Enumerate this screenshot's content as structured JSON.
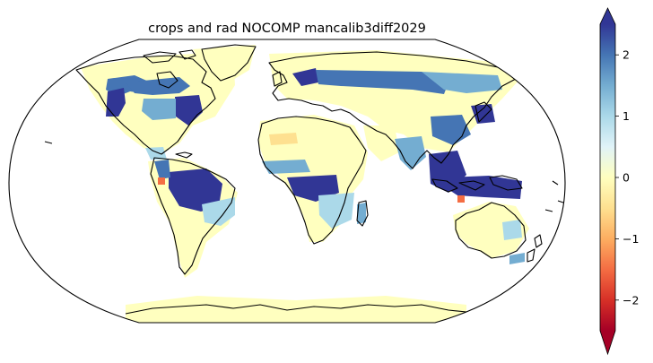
{
  "title": "crops and rad NOCOMP mancalib3diff2029",
  "colorbar": {
    "colormap": "RdYlBu",
    "range": [
      -2.5,
      2.5
    ],
    "extend": "both",
    "ticks": [
      {
        "value": 2,
        "label": "2"
      },
      {
        "value": 1,
        "label": "1"
      },
      {
        "value": 0,
        "label": "0"
      },
      {
        "value": -1,
        "label": "−1"
      },
      {
        "value": -2,
        "label": "−2"
      }
    ],
    "stops": [
      "#a50026",
      "#d73027",
      "#f46d43",
      "#fdae61",
      "#fee090",
      "#ffffbf",
      "#e0f3f8",
      "#abd9e9",
      "#74add1",
      "#4575b4",
      "#313695"
    ]
  },
  "map": {
    "projection": "Robinson",
    "coastlines": true,
    "colors": {
      "strong_positive": "#313695",
      "positive": "#4575b4",
      "moderate_positive": "#74add1",
      "light_positive": "#abd9e9",
      "faint_positive": "#e0f3f8",
      "near_zero": "#ffffbf",
      "slight_negative": "#fee090",
      "negative": "#f46d43"
    }
  }
}
